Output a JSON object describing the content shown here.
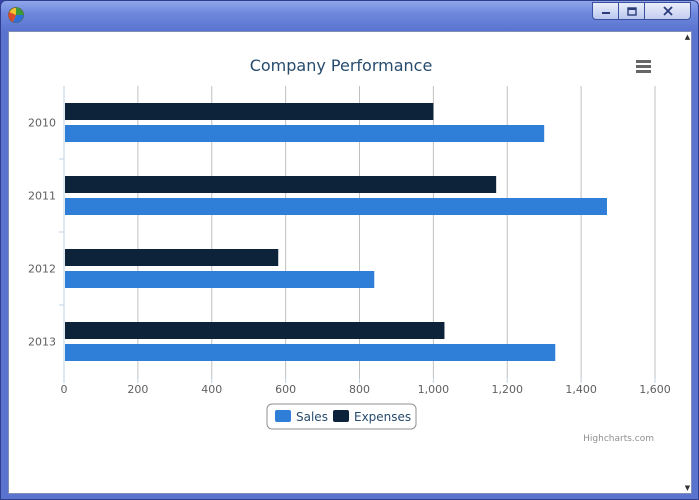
{
  "window": {
    "controls": {
      "minimize": "minimize",
      "maximize": "maximize",
      "close": "close"
    }
  },
  "chart_data": {
    "type": "bar",
    "orientation": "horizontal",
    "title": "Company Performance",
    "categories": [
      "2010",
      "2011",
      "2012",
      "2013"
    ],
    "series": [
      {
        "name": "Sales",
        "values": [
          1300,
          1470,
          840,
          1330
        ],
        "color": "#2f7ed8"
      },
      {
        "name": "Expenses",
        "values": [
          1000,
          1170,
          580,
          1030
        ],
        "color": "#0d233a"
      }
    ],
    "xlim": [
      0,
      1600
    ],
    "tick_labels": [
      "0",
      "200",
      "400",
      "600",
      "800",
      "1,000",
      "1,200",
      "1,400",
      "1,600"
    ],
    "grid": true,
    "legend_position": "bottom-center",
    "credits": "Highcharts.com"
  },
  "icons": {
    "app": "pie-chart-icon",
    "menu": "menu-icon"
  }
}
